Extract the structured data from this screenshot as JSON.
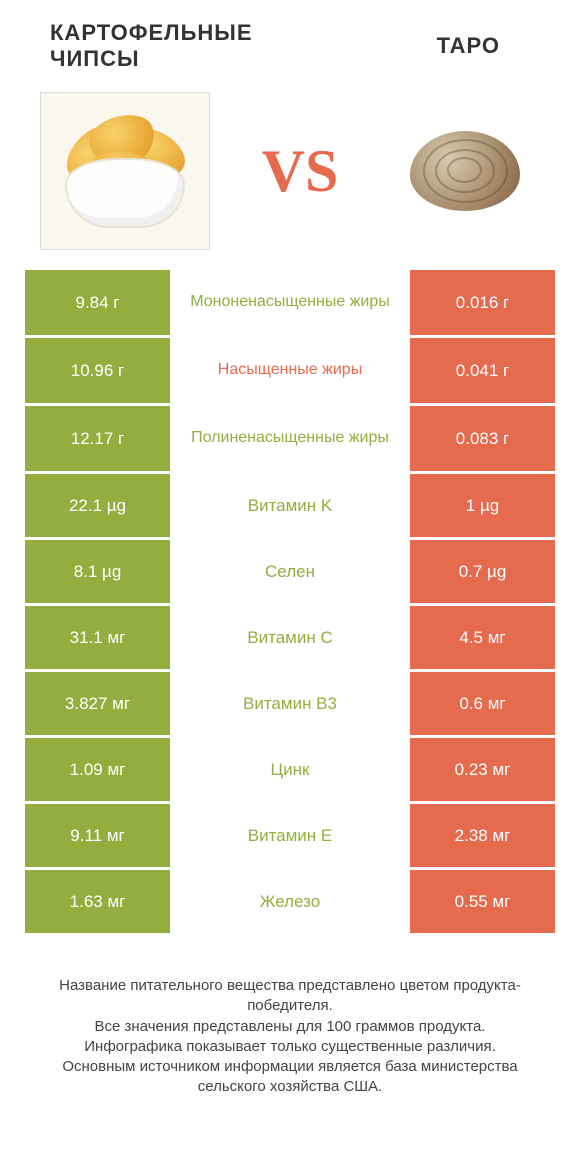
{
  "colors": {
    "left_bg": "#94ad3f",
    "right_bg": "#e66a4e",
    "mid_bg": "#ffffff",
    "left_text": "#94ad3f",
    "right_text": "#e66a4e",
    "cell_text": "#ffffff"
  },
  "header": {
    "left": "КАРТОФЕЛЬНЫЕ ЧИПСЫ",
    "right": "ТАРО",
    "vs": "VS"
  },
  "rows": [
    {
      "left": "9.84 г",
      "label": "Мононенасыщенные жиры",
      "right": "0.016 г",
      "label_color": "left",
      "tall": true
    },
    {
      "left": "10.96 г",
      "label": "Насыщенные жиры",
      "right": "0.041 г",
      "label_color": "right",
      "tall": true
    },
    {
      "left": "12.17 г",
      "label": "Полиненасыщенные жиры",
      "right": "0.083 г",
      "label_color": "left",
      "tall": true
    },
    {
      "left": "22.1 µg",
      "label": "Витамин K",
      "right": "1 µg",
      "label_color": "left",
      "tall": false
    },
    {
      "left": "8.1 µg",
      "label": "Селен",
      "right": "0.7 µg",
      "label_color": "left",
      "tall": false
    },
    {
      "left": "31.1 мг",
      "label": "Витамин C",
      "right": "4.5 мг",
      "label_color": "left",
      "tall": false
    },
    {
      "left": "3.827 мг",
      "label": "Витамин B3",
      "right": "0.6 мг",
      "label_color": "left",
      "tall": false
    },
    {
      "left": "1.09 мг",
      "label": "Цинк",
      "right": "0.23 мг",
      "label_color": "left",
      "tall": false
    },
    {
      "left": "9.11 мг",
      "label": "Витамин E",
      "right": "2.38 мг",
      "label_color": "left",
      "tall": false
    },
    {
      "left": "1.63 мг",
      "label": "Железо",
      "right": "0.55 мг",
      "label_color": "left",
      "tall": false
    }
  ],
  "footer": {
    "line1": "Название питательного вещества представлено цветом продукта-победителя.",
    "line2": "Все значения представлены для 100 граммов продукта.",
    "line3": "Инфографика показывает только существенные различия.",
    "line4": "Основным источником информации является база министерства сельского хозяйства США."
  }
}
